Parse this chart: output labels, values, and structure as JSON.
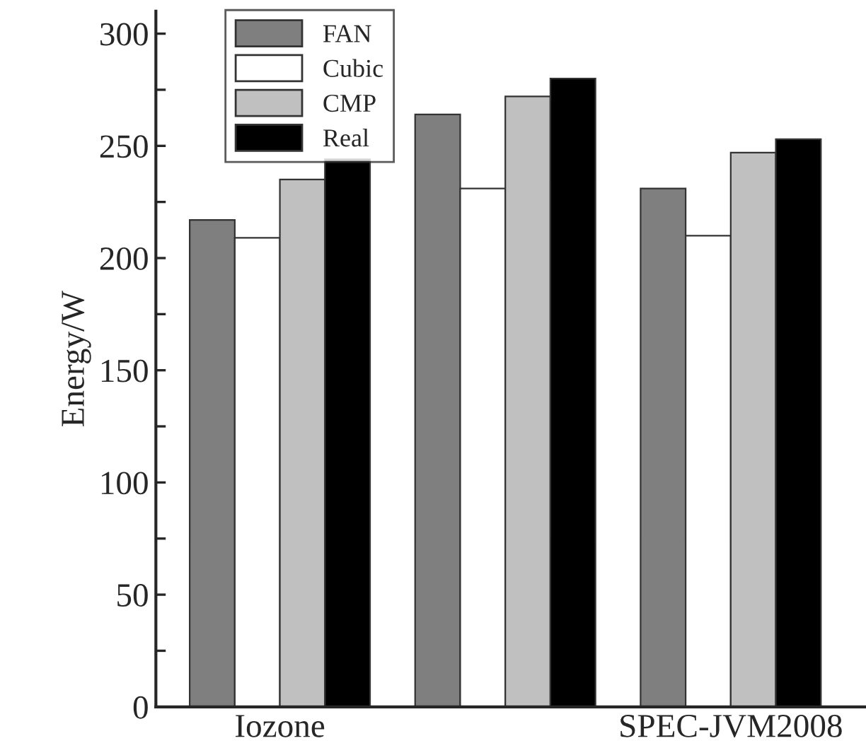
{
  "chart_data": {
    "type": "bar",
    "ylabel": "Energy/W",
    "categories": [
      "Iozone",
      null,
      "SPEC-JVM2008"
    ],
    "series": [
      {
        "name": "FAN",
        "color": "#7f7f7f",
        "values": [
          217,
          264,
          231
        ]
      },
      {
        "name": "Cubic",
        "color": "#ffffff",
        "values": [
          209,
          231,
          210
        ]
      },
      {
        "name": "CMP",
        "color": "#c0c0c0",
        "values": [
          235,
          272,
          247
        ]
      },
      {
        "name": "Real",
        "color": "#000000",
        "values": [
          244,
          280,
          253
        ]
      }
    ],
    "ylim": [
      0,
      310
    ],
    "yticks": [
      0,
      {
        "value": 25,
        "label": null
      },
      50,
      {
        "value": 75,
        "label": null
      },
      100,
      {
        "value": 125,
        "label": null
      },
      150,
      {
        "value": 175,
        "label": null
      },
      200,
      {
        "value": 225,
        "label": null
      },
      250,
      {
        "value": 275,
        "label": null
      },
      300
    ],
    "legend": "top left",
    "grid": false
  }
}
